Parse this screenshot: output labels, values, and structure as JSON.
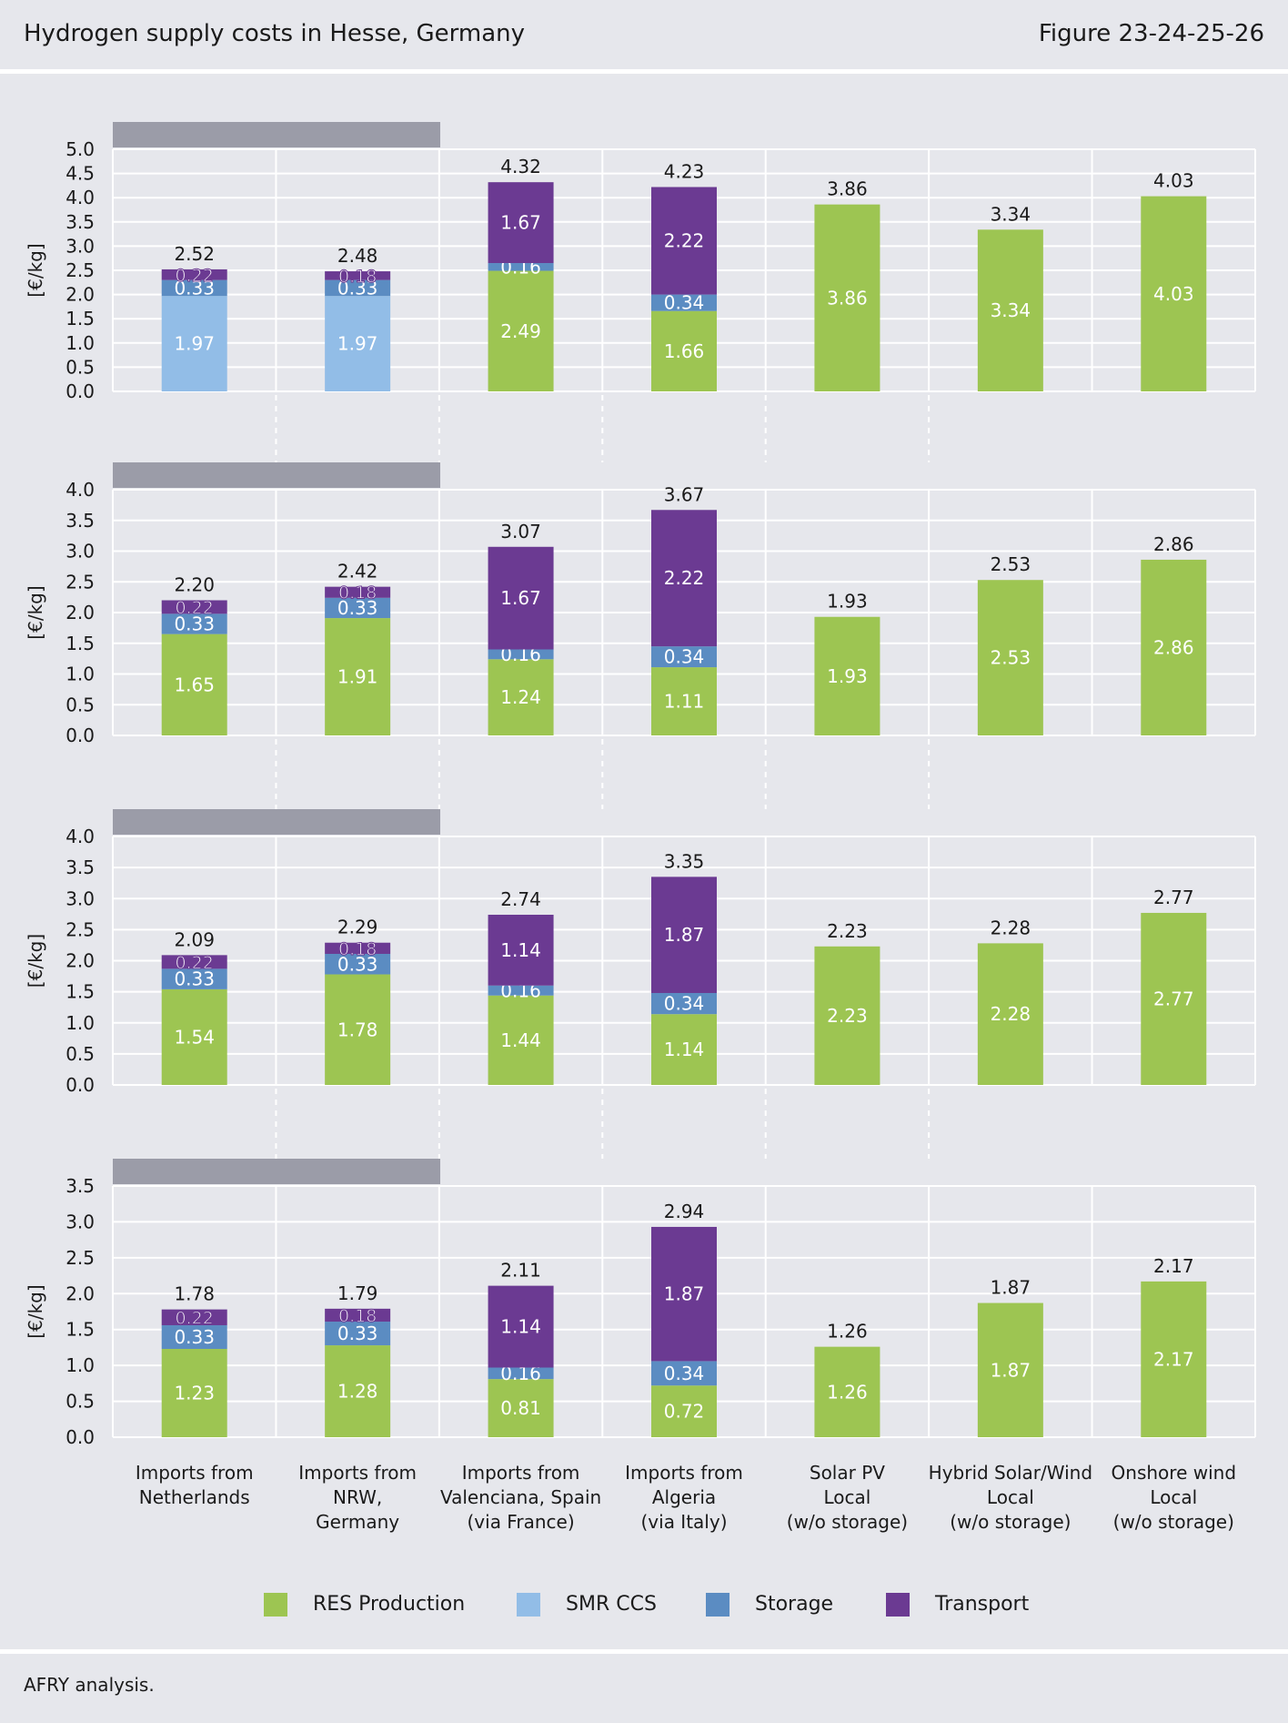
{
  "header": {
    "title": "Hydrogen supply costs in Hesse, Germany",
    "figure_label": "Figure 23-24-25-26"
  },
  "legend": [
    {
      "name": "RES Production",
      "color": "#9dc552"
    },
    {
      "name": "SMR CCS",
      "color": "#92bde7"
    },
    {
      "name": "Storage",
      "color": "#5b8cc2"
    },
    {
      "name": "Transport",
      "color": "#6b3a92"
    }
  ],
  "colors": {
    "res": "#9dc552",
    "smr": "#92bde7",
    "storage": "#5b8cc2",
    "transport": "#6b3a92",
    "header_bar": "#9b9ca8",
    "grid": "#ffffff",
    "background": "#e6e7ec"
  },
  "source": "AFRY analysis.",
  "chart_data": {
    "type": "bar",
    "stacked": true,
    "ylabel": "[€/kg]",
    "categories": [
      [
        "Imports from",
        "Netherlands"
      ],
      [
        "Imports from",
        "NRW,",
        "Germany"
      ],
      [
        "Imports from",
        "Valenciana, Spain",
        "(via France)"
      ],
      [
        "Imports from",
        "Algeria",
        "(via Italy)"
      ],
      [
        "Solar PV",
        "Local",
        "(w/o storage)"
      ],
      [
        "Hybrid Solar/Wind",
        "Local",
        "(w/o storage)"
      ],
      [
        "Onshore wind",
        "Local",
        "(w/o storage)"
      ]
    ],
    "panels": [
      {
        "ylim": [
          0,
          5.0
        ],
        "ticks": [
          "0.0",
          "0.5",
          "1.0",
          "1.5",
          "2.0",
          "2.5",
          "3.0",
          "3.5",
          "4.0",
          "4.5",
          "5.0"
        ],
        "bars": [
          {
            "total": "2.52",
            "segments": [
              {
                "series": "SMR CCS",
                "value": 1.97,
                "label": "1.97"
              },
              {
                "series": "Storage",
                "value": 0.33,
                "label": "0.33"
              },
              {
                "series": "Transport",
                "value": 0.22,
                "label": "0.22"
              }
            ]
          },
          {
            "total": "2.48",
            "segments": [
              {
                "series": "SMR CCS",
                "value": 1.97,
                "label": "1.97"
              },
              {
                "series": "Storage",
                "value": 0.33,
                "label": "0.33"
              },
              {
                "series": "Transport",
                "value": 0.18,
                "label": "0.18"
              }
            ]
          },
          {
            "total": "4.32",
            "segments": [
              {
                "series": "RES Production",
                "value": 2.49,
                "label": "2.49"
              },
              {
                "series": "Storage",
                "value": 0.16,
                "label": "0.16"
              },
              {
                "series": "Transport",
                "value": 1.67,
                "label": "1.67"
              }
            ]
          },
          {
            "total": "4.23",
            "segments": [
              {
                "series": "RES Production",
                "value": 1.66,
                "label": "1.66"
              },
              {
                "series": "Storage",
                "value": 0.34,
                "label": "0.34"
              },
              {
                "series": "Transport",
                "value": 2.22,
                "label": "2.22"
              }
            ]
          },
          {
            "total": "3.86",
            "segments": [
              {
                "series": "RES Production",
                "value": 3.86,
                "label": "3.86"
              }
            ]
          },
          {
            "total": "3.34",
            "segments": [
              {
                "series": "RES Production",
                "value": 3.34,
                "label": "3.34"
              }
            ]
          },
          {
            "total": "4.03",
            "segments": [
              {
                "series": "RES Production",
                "value": 4.03,
                "label": "4.03"
              }
            ]
          }
        ]
      },
      {
        "ylim": [
          0,
          4.0
        ],
        "ticks": [
          "0.0",
          "0.5",
          "1.0",
          "1.5",
          "2.0",
          "2.5",
          "3.0",
          "3.5",
          "4.0"
        ],
        "bars": [
          {
            "total": "2.20",
            "segments": [
              {
                "series": "RES Production",
                "value": 1.65,
                "label": "1.65"
              },
              {
                "series": "Storage",
                "value": 0.33,
                "label": "0.33"
              },
              {
                "series": "Transport",
                "value": 0.22,
                "label": "0.22"
              }
            ]
          },
          {
            "total": "2.42",
            "segments": [
              {
                "series": "RES Production",
                "value": 1.91,
                "label": "1.91"
              },
              {
                "series": "Storage",
                "value": 0.33,
                "label": "0.33"
              },
              {
                "series": "Transport",
                "value": 0.18,
                "label": "0.18"
              }
            ]
          },
          {
            "total": "3.07",
            "segments": [
              {
                "series": "RES Production",
                "value": 1.24,
                "label": "1.24"
              },
              {
                "series": "Storage",
                "value": 0.16,
                "label": "0.16"
              },
              {
                "series": "Transport",
                "value": 1.67,
                "label": "1.67"
              }
            ]
          },
          {
            "total": "3.67",
            "segments": [
              {
                "series": "RES Production",
                "value": 1.11,
                "label": "1.11"
              },
              {
                "series": "Storage",
                "value": 0.34,
                "label": "0.34"
              },
              {
                "series": "Transport",
                "value": 2.22,
                "label": "2.22"
              }
            ]
          },
          {
            "total": "1.93",
            "segments": [
              {
                "series": "RES Production",
                "value": 1.93,
                "label": "1.93"
              }
            ]
          },
          {
            "total": "2.53",
            "segments": [
              {
                "series": "RES Production",
                "value": 2.53,
                "label": "2.53"
              }
            ]
          },
          {
            "total": "2.86",
            "segments": [
              {
                "series": "RES Production",
                "value": 2.86,
                "label": "2.86"
              }
            ]
          }
        ]
      },
      {
        "ylim": [
          0,
          4.0
        ],
        "ticks": [
          "0.0",
          "0.5",
          "1.0",
          "1.5",
          "2.0",
          "2.5",
          "3.0",
          "3.5",
          "4.0"
        ],
        "bars": [
          {
            "total": "2.09",
            "segments": [
              {
                "series": "RES Production",
                "value": 1.54,
                "label": "1.54"
              },
              {
                "series": "Storage",
                "value": 0.33,
                "label": "0.33"
              },
              {
                "series": "Transport",
                "value": 0.22,
                "label": "0.22"
              }
            ]
          },
          {
            "total": "2.29",
            "segments": [
              {
                "series": "RES Production",
                "value": 1.78,
                "label": "1.78"
              },
              {
                "series": "Storage",
                "value": 0.33,
                "label": "0.33"
              },
              {
                "series": "Transport",
                "value": 0.18,
                "label": "0.18"
              }
            ]
          },
          {
            "total": "2.74",
            "segments": [
              {
                "series": "RES Production",
                "value": 1.44,
                "label": "1.44"
              },
              {
                "series": "Storage",
                "value": 0.16,
                "label": "0.16"
              },
              {
                "series": "Transport",
                "value": 1.14,
                "label": "1.14"
              }
            ]
          },
          {
            "total": "3.35",
            "segments": [
              {
                "series": "RES Production",
                "value": 1.14,
                "label": "1.14"
              },
              {
                "series": "Storage",
                "value": 0.34,
                "label": "0.34"
              },
              {
                "series": "Transport",
                "value": 1.87,
                "label": "1.87"
              }
            ]
          },
          {
            "total": "2.23",
            "segments": [
              {
                "series": "RES Production",
                "value": 2.23,
                "label": "2.23"
              }
            ]
          },
          {
            "total": "2.28",
            "segments": [
              {
                "series": "RES Production",
                "value": 2.28,
                "label": "2.28"
              }
            ]
          },
          {
            "total": "2.77",
            "segments": [
              {
                "series": "RES Production",
                "value": 2.77,
                "label": "2.77"
              }
            ]
          }
        ]
      },
      {
        "ylim": [
          0,
          3.5
        ],
        "ticks": [
          "0.0",
          "0.5",
          "1.0",
          "1.5",
          "2.0",
          "2.5",
          "3.0",
          "3.5"
        ],
        "bars": [
          {
            "total": "1.78",
            "segments": [
              {
                "series": "RES Production",
                "value": 1.23,
                "label": "1.23"
              },
              {
                "series": "Storage",
                "value": 0.33,
                "label": "0.33"
              },
              {
                "series": "Transport",
                "value": 0.22,
                "label": "0.22"
              }
            ]
          },
          {
            "total": "1.79",
            "segments": [
              {
                "series": "RES Production",
                "value": 1.28,
                "label": "1.28"
              },
              {
                "series": "Storage",
                "value": 0.33,
                "label": "0.33"
              },
              {
                "series": "Transport",
                "value": 0.18,
                "label": "0.18"
              }
            ]
          },
          {
            "total": "2.11",
            "segments": [
              {
                "series": "RES Production",
                "value": 0.81,
                "label": "0.81"
              },
              {
                "series": "Storage",
                "value": 0.16,
                "label": "0.16"
              },
              {
                "series": "Transport",
                "value": 1.14,
                "label": "1.14"
              }
            ]
          },
          {
            "total": "2.94",
            "segments": [
              {
                "series": "RES Production",
                "value": 0.72,
                "label": "0.72"
              },
              {
                "series": "Storage",
                "value": 0.34,
                "label": "0.34"
              },
              {
                "series": "Transport",
                "value": 1.87,
                "label": "1.87"
              }
            ]
          },
          {
            "total": "1.26",
            "segments": [
              {
                "series": "RES Production",
                "value": 1.26,
                "label": "1.26"
              }
            ]
          },
          {
            "total": "1.87",
            "segments": [
              {
                "series": "RES Production",
                "value": 1.87,
                "label": "1.87"
              }
            ]
          },
          {
            "total": "2.17",
            "segments": [
              {
                "series": "RES Production",
                "value": 2.17,
                "label": "2.17"
              }
            ]
          }
        ]
      }
    ]
  }
}
